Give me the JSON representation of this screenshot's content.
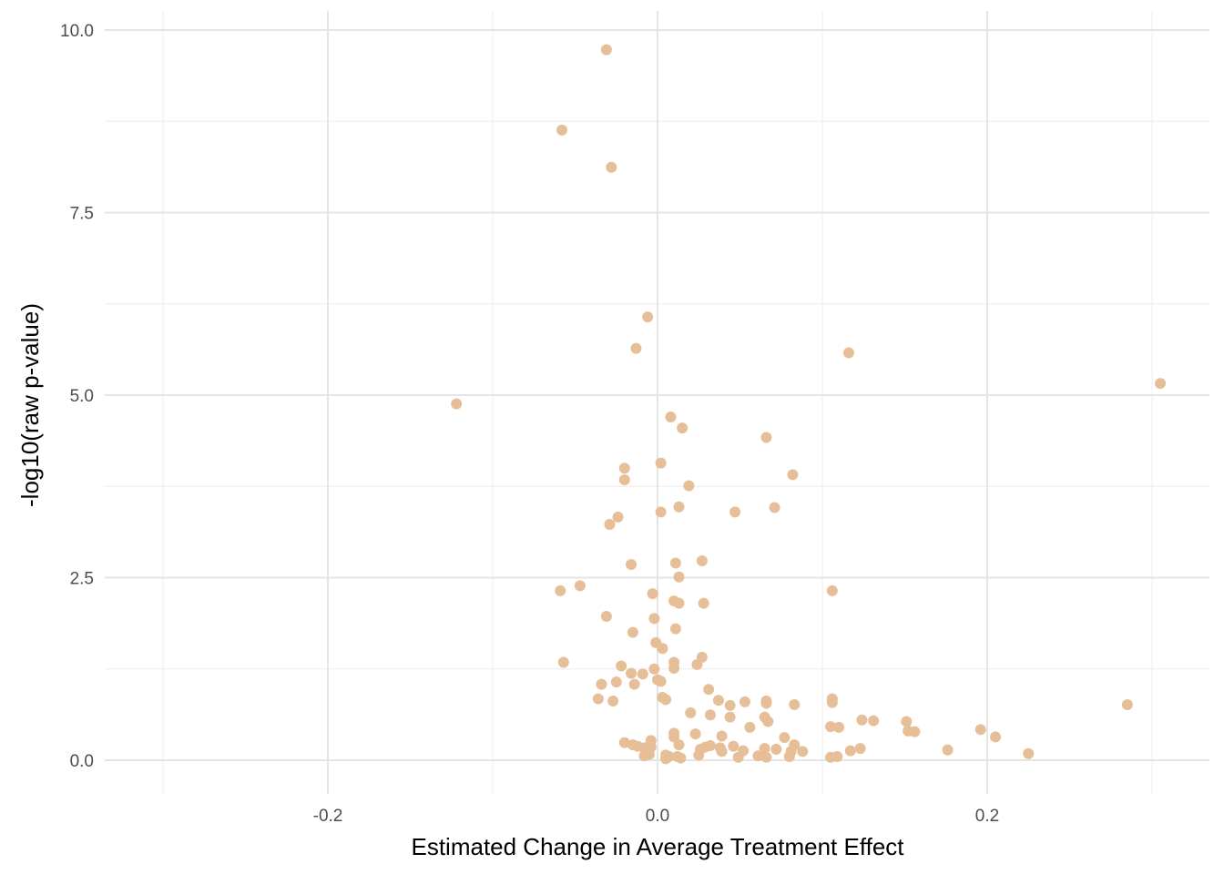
{
  "chart_data": {
    "type": "scatter",
    "title": "",
    "xlabel": "Estimated Change in Average Treatment Effect",
    "ylabel": "-log10(raw p-value)",
    "xlim": [
      -0.3,
      0.3
    ],
    "ylim": [
      -0.9,
      10.5
    ],
    "x_ticks": [
      -0.2,
      0.0,
      0.2
    ],
    "x_tick_labels": [
      "-0.2",
      "0.0",
      "0.2"
    ],
    "x_minor_ticks": [
      -0.3,
      -0.1,
      0.1,
      0.3
    ],
    "y_ticks": [
      0.0,
      2.5,
      5.0,
      7.5,
      10.0
    ],
    "y_tick_labels": [
      "0.0",
      "2.5",
      "5.0",
      "7.5",
      "10.0"
    ],
    "y_minor_ticks": [
      1.25,
      3.75,
      6.25,
      8.75
    ],
    "grid": true,
    "legend": "none",
    "point_color": "#e6bf99",
    "points": [
      [
        -0.031,
        9.73
      ],
      [
        -0.058,
        8.63
      ],
      [
        -0.028,
        8.12
      ],
      [
        -0.006,
        6.07
      ],
      [
        -0.013,
        5.64
      ],
      [
        0.116,
        5.58
      ],
      [
        0.305,
        5.16
      ],
      [
        -0.122,
        4.88
      ],
      [
        0.008,
        4.7
      ],
      [
        0.015,
        4.55
      ],
      [
        0.066,
        4.42
      ],
      [
        0.002,
        4.07
      ],
      [
        -0.02,
        4.0
      ],
      [
        0.082,
        3.91
      ],
      [
        -0.02,
        3.84
      ],
      [
        0.019,
        3.76
      ],
      [
        0.013,
        3.47
      ],
      [
        0.071,
        3.46
      ],
      [
        0.002,
        3.4
      ],
      [
        0.047,
        3.4
      ],
      [
        -0.024,
        3.33
      ],
      [
        -0.029,
        3.23
      ],
      [
        0.027,
        2.73
      ],
      [
        0.011,
        2.7
      ],
      [
        -0.016,
        2.68
      ],
      [
        0.013,
        2.51
      ],
      [
        -0.047,
        2.39
      ],
      [
        -0.059,
        2.32
      ],
      [
        0.106,
        2.32
      ],
      [
        -0.003,
        2.28
      ],
      [
        0.01,
        2.18
      ],
      [
        0.013,
        2.15
      ],
      [
        0.028,
        2.15
      ],
      [
        -0.031,
        1.97
      ],
      [
        -0.002,
        1.94
      ],
      [
        0.011,
        1.8
      ],
      [
        -0.015,
        1.75
      ],
      [
        -0.001,
        1.61
      ],
      [
        0.003,
        1.53
      ],
      [
        0.027,
        1.41
      ],
      [
        -0.057,
        1.34
      ],
      [
        0.01,
        1.34
      ],
      [
        0.024,
        1.31
      ],
      [
        -0.022,
        1.29
      ],
      [
        0.01,
        1.26
      ],
      [
        -0.002,
        1.25
      ],
      [
        -0.016,
        1.19
      ],
      [
        -0.009,
        1.18
      ],
      [
        0.0,
        1.1
      ],
      [
        0.002,
        1.08
      ],
      [
        -0.025,
        1.07
      ],
      [
        -0.034,
        1.04
      ],
      [
        -0.014,
        1.04
      ],
      [
        0.031,
        0.97
      ],
      [
        0.003,
        0.86
      ],
      [
        0.005,
        0.83
      ],
      [
        -0.036,
        0.84
      ],
      [
        0.037,
        0.82
      ],
      [
        -0.027,
        0.81
      ],
      [
        0.053,
        0.8
      ],
      [
        0.066,
        0.81
      ],
      [
        0.106,
        0.84
      ],
      [
        0.066,
        0.78
      ],
      [
        0.106,
        0.79
      ],
      [
        0.044,
        0.75
      ],
      [
        0.083,
        0.76
      ],
      [
        0.285,
        0.76
      ],
      [
        0.02,
        0.65
      ],
      [
        0.032,
        0.62
      ],
      [
        0.065,
        0.59
      ],
      [
        0.044,
        0.59
      ],
      [
        0.067,
        0.53
      ],
      [
        0.124,
        0.55
      ],
      [
        0.131,
        0.54
      ],
      [
        0.151,
        0.53
      ],
      [
        0.056,
        0.45
      ],
      [
        0.105,
        0.46
      ],
      [
        0.11,
        0.45
      ],
      [
        0.152,
        0.4
      ],
      [
        0.156,
        0.39
      ],
      [
        0.196,
        0.42
      ],
      [
        0.205,
        0.32
      ],
      [
        0.01,
        0.37
      ],
      [
        0.023,
        0.36
      ],
      [
        0.039,
        0.33
      ],
      [
        0.077,
        0.31
      ],
      [
        0.01,
        0.32
      ],
      [
        -0.004,
        0.27
      ],
      [
        -0.02,
        0.24
      ],
      [
        -0.015,
        0.21
      ],
      [
        -0.012,
        0.19
      ],
      [
        -0.008,
        0.17
      ],
      [
        -0.004,
        0.18
      ],
      [
        0.013,
        0.21
      ],
      [
        0.032,
        0.2
      ],
      [
        0.029,
        0.18
      ],
      [
        0.038,
        0.17
      ],
      [
        0.026,
        0.15
      ],
      [
        0.046,
        0.19
      ],
      [
        0.083,
        0.21
      ],
      [
        0.065,
        0.16
      ],
      [
        0.072,
        0.15
      ],
      [
        0.052,
        0.13
      ],
      [
        0.081,
        0.12
      ],
      [
        0.088,
        0.12
      ],
      [
        0.117,
        0.13
      ],
      [
        0.123,
        0.16
      ],
      [
        0.176,
        0.14
      ],
      [
        0.225,
        0.09
      ],
      [
        -0.008,
        0.06
      ],
      [
        -0.005,
        0.08
      ],
      [
        0.005,
        0.07
      ],
      [
        0.007,
        0.05
      ],
      [
        0.005,
        0.02
      ],
      [
        0.012,
        0.05
      ],
      [
        0.014,
        0.03
      ],
      [
        0.025,
        0.07
      ],
      [
        0.039,
        0.12
      ],
      [
        0.049,
        0.04
      ],
      [
        0.061,
        0.06
      ],
      [
        0.066,
        0.04
      ],
      [
        0.08,
        0.05
      ],
      [
        0.105,
        0.04
      ],
      [
        0.109,
        0.05
      ]
    ]
  }
}
